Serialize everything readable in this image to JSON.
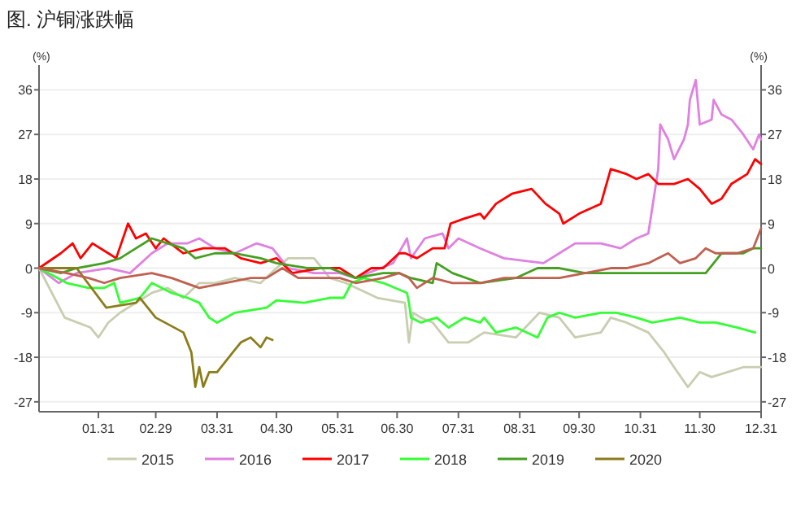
{
  "chart_data": {
    "type": "line",
    "title": "图. 沪铜涨跌幅",
    "ylabel": "(%)",
    "y2label": "(%)",
    "xlim": [
      "--01-01",
      "--12-31"
    ],
    "xticks": [
      {
        "value": "--01-31",
        "label": "01.31"
      },
      {
        "value": "--02-29",
        "label": "02.29"
      },
      {
        "value": "--03-31",
        "label": "03.31"
      },
      {
        "value": "--04-30",
        "label": "04.30"
      },
      {
        "value": "--05-31",
        "label": "05.31"
      },
      {
        "value": "--06-30",
        "label": "06.30"
      },
      {
        "value": "--07-31",
        "label": "07.31"
      },
      {
        "value": "--08-31",
        "label": "08.31"
      },
      {
        "value": "--09-30",
        "label": "09.30"
      },
      {
        "value": "--10-31",
        "label": "10.31"
      },
      {
        "value": "--11-30",
        "label": "11.30"
      },
      {
        "value": "--12-31",
        "label": "12.31"
      }
    ],
    "ylim": [
      -29,
      41
    ],
    "yticks": [
      -27,
      -18,
      -9,
      0,
      9,
      18,
      27,
      36
    ],
    "y2lim": [
      -29,
      41
    ],
    "y2ticks": [
      -27,
      -18,
      -9,
      0,
      9,
      18,
      27,
      36
    ],
    "grid": "y",
    "legend": "bottom",
    "series": [
      {
        "name": "2015",
        "color": "#c8ceb0",
        "x": [
          "--01-01",
          "--01-14",
          "--01-27",
          "--01-31",
          "--02-05",
          "--02-11",
          "--02-19",
          "--02-27",
          "--03-06",
          "--03-14",
          "--03-22",
          "--03-30",
          "--04-09",
          "--04-22",
          "--04-30",
          "--05-06",
          "--05-19",
          "--05-27",
          "--06-04",
          "--06-20",
          "--07-04",
          "--07-06",
          "--07-08",
          "--07-12",
          "--07-18",
          "--07-26",
          "--08-05",
          "--08-13",
          "--08-29",
          "--09-10",
          "--09-20",
          "--09-28",
          "--10-11",
          "--10-16",
          "--10-24",
          "--11-04",
          "--11-12",
          "--11-17",
          "--11-24",
          "--11-30",
          "--12-06",
          "--12-14",
          "--12-22",
          "--12-31"
        ],
        "values": [
          0,
          -10,
          -12,
          -14,
          -11,
          -9,
          -7,
          -5,
          -4,
          -6,
          -3,
          -3,
          -2,
          -3,
          0,
          2,
          2,
          -2,
          -3,
          -6,
          -7,
          -15,
          -9,
          -10,
          -11,
          -15,
          -15,
          -13,
          -14,
          -9,
          -10,
          -14,
          -13,
          -10,
          -11,
          -13,
          -17,
          -20,
          -24,
          -21,
          -22,
          -21,
          -20,
          -20
        ]
      },
      {
        "name": "2016",
        "color": "#e080e0",
        "x": [
          "--01-01",
          "--01-11",
          "--01-20",
          "--02-05",
          "--02-16",
          "--02-27",
          "--03-06",
          "--03-16",
          "--03-22",
          "--03-30",
          "--04-09",
          "--04-20",
          "--04-28",
          "--05-06",
          "--05-19",
          "--06-01",
          "--06-09",
          "--06-28",
          "--07-05",
          "--07-07",
          "--07-14",
          "--07-23",
          "--07-26",
          "--07-31",
          "--08-11",
          "--08-23",
          "--09-12",
          "--09-20",
          "--09-28",
          "--10-11",
          "--10-21",
          "--10-29",
          "--11-04",
          "--11-09",
          "--11-10",
          "--11-14",
          "--11-17",
          "--11-22",
          "--11-24",
          "--11-25",
          "--11-28",
          "--11-30",
          "--12-06",
          "--12-07",
          "--12-11",
          "--12-16",
          "--12-22",
          "--12-27",
          "--12-30",
          "--12-31"
        ],
        "values": [
          0,
          -3,
          -1,
          0,
          -1,
          3,
          5,
          5,
          6,
          4,
          3,
          5,
          4,
          0,
          -1,
          -1,
          -2,
          1,
          6,
          2,
          6,
          7,
          4,
          6,
          4,
          2,
          1,
          3,
          5,
          5,
          4,
          6,
          7,
          20,
          29,
          26,
          22,
          26,
          29,
          34,
          38,
          29,
          30,
          34,
          31,
          30,
          27,
          24,
          27,
          26
        ]
      },
      {
        "name": "2017",
        "color": "#ff0000",
        "x": [
          "--01-01",
          "--01-12",
          "--01-18",
          "--01-22",
          "--01-28",
          "--02-05",
          "--02-09",
          "--02-15",
          "--02-19",
          "--02-24",
          "--02-29",
          "--03-04",
          "--03-14",
          "--03-24",
          "--04-04",
          "--04-12",
          "--04-22",
          "--04-30",
          "--05-08",
          "--05-22",
          "--06-01",
          "--06-09",
          "--06-17",
          "--06-23",
          "--07-01",
          "--07-04",
          "--07-10",
          "--07-18",
          "--07-24",
          "--07-27",
          "--08-03",
          "--08-11",
          "--08-13",
          "--08-19",
          "--08-27",
          "--09-06",
          "--09-13",
          "--09-20",
          "--09-22",
          "--09-30",
          "--10-11",
          "--10-16",
          "--10-24",
          "--10-29",
          "--11-04",
          "--11-09",
          "--11-17",
          "--11-24",
          "--11-30",
          "--12-06",
          "--12-11",
          "--12-16",
          "--12-24",
          "--12-28",
          "--12-31"
        ],
        "values": [
          0,
          3,
          5,
          2,
          5,
          3,
          2,
          9,
          6,
          7,
          4,
          6,
          3,
          4,
          4,
          2,
          1,
          2,
          -1,
          0,
          0,
          -2,
          0,
          0,
          3,
          3,
          2,
          4,
          4,
          9,
          10,
          11,
          10,
          13,
          15,
          16,
          13,
          11,
          9,
          11,
          13,
          20,
          19,
          18,
          19,
          17,
          17,
          18,
          16,
          13,
          14,
          17,
          19,
          22,
          21
        ]
      },
      {
        "name": "2018",
        "color": "#33ff33",
        "x": [
          "--01-01",
          "--01-15",
          "--01-26",
          "--02-03",
          "--02-08",
          "--02-11",
          "--02-21",
          "--02-27",
          "--03-08",
          "--03-16",
          "--03-22",
          "--03-27",
          "--03-31",
          "--04-09",
          "--04-25",
          "--04-30",
          "--05-14",
          "--05-27",
          "--06-03",
          "--06-07",
          "--06-13",
          "--06-23",
          "--07-05",
          "--07-06",
          "--07-07",
          "--07-12",
          "--07-20",
          "--07-26",
          "--08-03",
          "--08-11",
          "--08-13",
          "--08-19",
          "--08-29",
          "--09-09",
          "--09-14",
          "--09-20",
          "--09-28",
          "--10-11",
          "--10-19",
          "--10-29",
          "--11-06",
          "--11-20",
          "--11-30",
          "--12-08",
          "--12-19",
          "--12-28"
        ],
        "values": [
          0,
          -3,
          -4,
          -4,
          -3,
          -7,
          -6,
          -3,
          -5,
          -6,
          -7,
          -10,
          -11,
          -9,
          -8,
          -6.5,
          -7,
          -6,
          -6,
          -3,
          -2,
          -3,
          -5,
          -7,
          -10,
          -11,
          -10,
          -12,
          -10,
          -11,
          -10,
          -13,
          -12,
          -14,
          -10,
          -9,
          -10,
          -9,
          -9,
          -10,
          -11,
          -10,
          -11,
          -11,
          -12,
          -13
        ]
      },
      {
        "name": "2019",
        "color": "#44a020",
        "x": [
          "--01-01",
          "--01-12",
          "--01-20",
          "--02-03",
          "--02-11",
          "--02-19",
          "--02-27",
          "--03-06",
          "--03-14",
          "--03-20",
          "--03-30",
          "--04-09",
          "--04-22",
          "--04-30",
          "--05-16",
          "--05-27",
          "--06-09",
          "--06-23",
          "--07-01",
          "--07-07",
          "--07-18",
          "--07-20",
          "--07-28",
          "--08-11",
          "--08-29",
          "--09-09",
          "--09-20",
          "--10-03",
          "--10-16",
          "--10-29",
          "--11-12",
          "--11-25",
          "--12-03",
          "--12-11",
          "--12-22",
          "--12-27",
          "--12-31"
        ],
        "values": [
          0,
          -1,
          0,
          1,
          2,
          4,
          6,
          5,
          4,
          2,
          3,
          3,
          2,
          1,
          0,
          0,
          -2,
          -1,
          -1,
          -2,
          -3,
          1,
          -1,
          -3,
          -2,
          0,
          0,
          -1,
          -1,
          -1,
          -1,
          -1,
          -1,
          3,
          3,
          4,
          4
        ]
      },
      {
        "name": "2020",
        "color": "#8b7d1a",
        "x": [
          "--01-01",
          "--01-20",
          "--02-04",
          "--02-19",
          "--02-21",
          "--02-29",
          "--03-14",
          "--03-18",
          "--03-20",
          "--03-22",
          "--03-24",
          "--03-27",
          "--03-31",
          "--04-04",
          "--04-08",
          "--04-12",
          "--04-17",
          "--04-22",
          "--04-25",
          "--04-28"
        ],
        "values": [
          0,
          0,
          -8,
          -7,
          -6,
          -10,
          -13,
          -17,
          -24,
          -20,
          -24,
          -21,
          -21,
          -19,
          -17,
          -15,
          -14,
          -16,
          -14,
          -14.5
        ]
      },
      {
        "color": "#c06050",
        "x": [
          "--01-01",
          "--01-15",
          "--01-26",
          "--02-03",
          "--02-11",
          "--02-27",
          "--03-08",
          "--03-22",
          "--04-04",
          "--04-17",
          "--04-25",
          "--05-03",
          "--05-11",
          "--05-22",
          "--06-01",
          "--06-09",
          "--06-23",
          "--07-01",
          "--07-06",
          "--07-10",
          "--07-18",
          "--07-28",
          "--08-11",
          "--08-23",
          "--09-06",
          "--09-20",
          "--10-03",
          "--10-16",
          "--10-24",
          "--11-04",
          "--11-09",
          "--11-14",
          "--11-20",
          "--11-28",
          "--12-03",
          "--12-08",
          "--12-19",
          "--12-27",
          "--12-31"
        ],
        "values": [
          0,
          -1,
          -2,
          -3,
          -2,
          -1,
          -2,
          -4,
          -3,
          -2,
          -2,
          0,
          -2,
          -2,
          -2,
          -3,
          -2,
          -1,
          -2,
          -4,
          -2,
          -3,
          -3,
          -2,
          -2,
          -2,
          -1,
          0,
          0,
          1,
          2,
          3,
          1,
          2,
          4,
          3,
          3,
          4,
          8
        ]
      }
    ]
  }
}
